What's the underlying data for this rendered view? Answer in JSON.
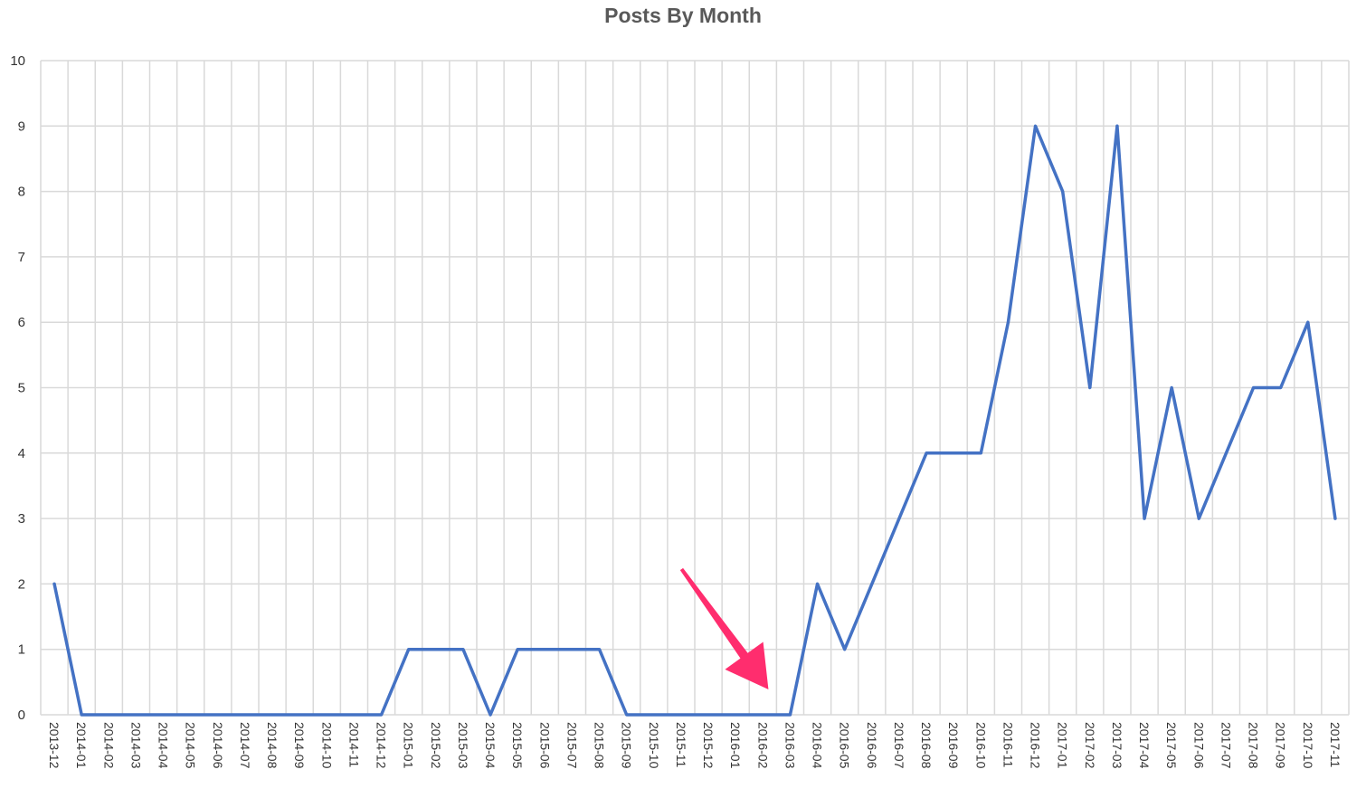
{
  "chart_data": {
    "type": "line",
    "title": "Posts By Month",
    "xlabel": "",
    "ylabel": "",
    "ylim": [
      0,
      10
    ],
    "yticks": [
      "0",
      "1",
      "2",
      "3",
      "4",
      "5",
      "6",
      "7",
      "8",
      "9",
      "10"
    ],
    "grid": true,
    "legend": "none",
    "categories": [
      "2013-12",
      "2014-01",
      "2014-02",
      "2014-03",
      "2014-04",
      "2014-05",
      "2014-06",
      "2014-07",
      "2014-08",
      "2014-09",
      "2014-10",
      "2014-11",
      "2014-12",
      "2015-01",
      "2015-02",
      "2015-03",
      "2015-04",
      "2015-05",
      "2015-06",
      "2015-07",
      "2015-08",
      "2015-09",
      "2015-10",
      "2015-11",
      "2015-12",
      "2016-01",
      "2016-02",
      "2016-03",
      "2016-04",
      "2016-05",
      "2016-06",
      "2016-07",
      "2016-08",
      "2016-09",
      "2016-10",
      "2016-11",
      "2016-12",
      "2017-01",
      "2017-02",
      "2017-03",
      "2017-04",
      "2017-05",
      "2017-06",
      "2017-07",
      "2017-08",
      "2017-09",
      "2017-10",
      "2017-11"
    ],
    "series": [
      {
        "values": [
          2,
          0,
          0,
          0,
          0,
          0,
          0,
          0,
          0,
          0,
          0,
          0,
          0,
          1,
          1,
          1,
          0,
          1,
          1,
          1,
          1,
          0,
          0,
          0,
          0,
          0,
          0,
          0,
          2,
          1,
          2,
          3,
          4,
          4,
          4,
          6,
          9,
          8,
          5,
          9,
          3,
          5,
          3,
          4,
          5,
          5,
          6,
          3
        ]
      }
    ],
    "annotations": [
      {
        "type": "arrow",
        "color": "#ff2d6e",
        "points_to_category": "2016-03"
      }
    ]
  },
  "colors": {
    "series": "#4472c4",
    "grid": "#d9d9d9",
    "arrow": "#ff2d6e",
    "title": "#595959"
  }
}
